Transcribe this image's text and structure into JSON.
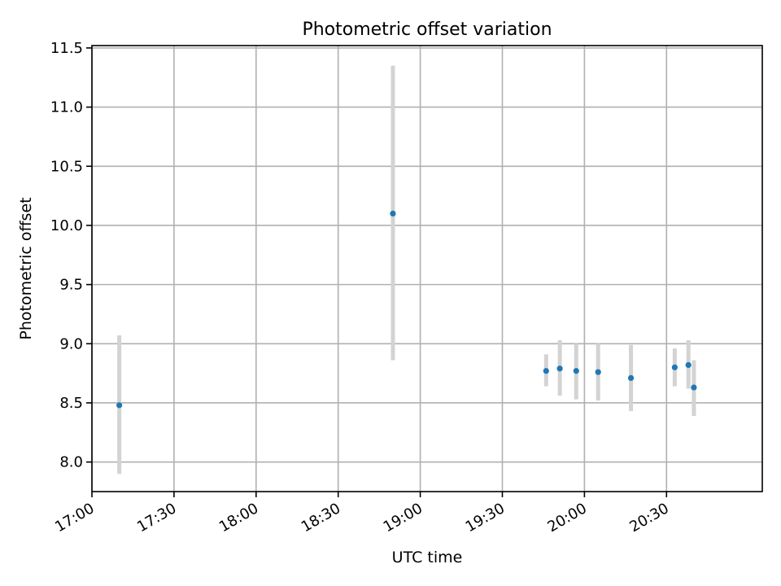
{
  "chart_data": {
    "type": "scatter",
    "title": "Photometric offset variation",
    "xlabel": "UTC time",
    "ylabel": "Photometric offset",
    "xlim": [
      "17:00",
      "21:05"
    ],
    "ylim": [
      7.75,
      11.52
    ],
    "x_ticks": [
      "17:00",
      "17:30",
      "18:00",
      "18:30",
      "19:00",
      "19:30",
      "20:00",
      "20:30"
    ],
    "y_ticks": [
      "8.0",
      "8.5",
      "9.0",
      "9.5",
      "10.0",
      "10.5",
      "11.0",
      "11.5"
    ],
    "grid": true,
    "point_color": "#1f77b4",
    "errorbar_color": "#d3d3d3",
    "points": [
      {
        "x": "17:10",
        "y": 8.48,
        "ylow": 7.9,
        "yhigh": 9.07
      },
      {
        "x": "18:50",
        "y": 10.1,
        "ylow": 8.86,
        "yhigh": 11.35
      },
      {
        "x": "19:46",
        "y": 8.77,
        "ylow": 8.64,
        "yhigh": 8.91
      },
      {
        "x": "19:51",
        "y": 8.79,
        "ylow": 8.56,
        "yhigh": 9.03
      },
      {
        "x": "19:57",
        "y": 8.77,
        "ylow": 8.53,
        "yhigh": 9.0
      },
      {
        "x": "20:05",
        "y": 8.76,
        "ylow": 8.52,
        "yhigh": 9.0
      },
      {
        "x": "20:17",
        "y": 8.71,
        "ylow": 8.43,
        "yhigh": 8.99
      },
      {
        "x": "20:33",
        "y": 8.8,
        "ylow": 8.64,
        "yhigh": 8.96
      },
      {
        "x": "20:38",
        "y": 8.82,
        "ylow": 8.62,
        "yhigh": 9.03
      },
      {
        "x": "20:40",
        "y": 8.63,
        "ylow": 8.39,
        "yhigh": 8.86
      }
    ]
  }
}
